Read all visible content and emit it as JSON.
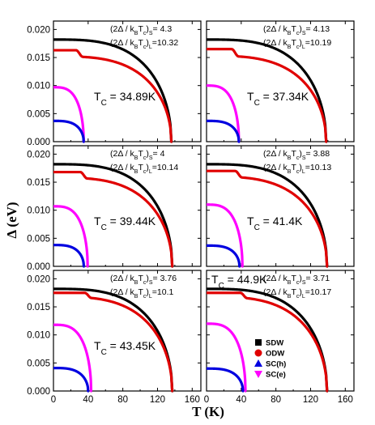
{
  "chart_data": {
    "type": "line",
    "xlabel": "T (K)",
    "ylabel": "Δ (eV)",
    "xlim": [
      0,
      170
    ],
    "ylim": [
      0,
      0.0215
    ],
    "xticks": [
      0,
      40,
      80,
      120,
      160
    ],
    "yticks": [
      0.0,
      0.005,
      0.01,
      0.015,
      0.02
    ],
    "legend": {
      "placement": "bottom-right panel",
      "entries": [
        {
          "label": "SDW",
          "marker": "square",
          "color": "#000000"
        },
        {
          "label": "ODW",
          "marker": "circle",
          "color": "#e00000"
        },
        {
          "label": "SC(h)",
          "marker": "triangle-up",
          "color": "#0000e0"
        },
        {
          "label": "SC(e)",
          "marker": "triangle-down",
          "color": "#ff00ff"
        }
      ]
    },
    "panels": [
      {
        "tc_label": "34.89K",
        "ratio_s": "4.3",
        "ratio_l": "10.32",
        "sdw": {
          "delta0": 0.0182,
          "t_end": 136
        },
        "odw": {
          "delta0": 0.0163,
          "t_end": 136,
          "dip_at": 30,
          "delta_after_dip": 0.0152
        },
        "sch": {
          "delta0": 0.0037,
          "t_end": 34.89
        },
        "sce": {
          "delta0": 0.0097,
          "t_end": 34.89
        }
      },
      {
        "tc_label": "37.34K",
        "ratio_s": "4.13",
        "ratio_l": "10.19",
        "sdw": {
          "delta0": 0.0182,
          "t_end": 138
        },
        "odw": {
          "delta0": 0.0165,
          "t_end": 138,
          "dip_at": 33,
          "delta_after_dip": 0.0153
        },
        "sch": {
          "delta0": 0.0037,
          "t_end": 37.34
        },
        "sce": {
          "delta0": 0.01,
          "t_end": 37.34
        }
      },
      {
        "tc_label": "39.44K",
        "ratio_s": "4",
        "ratio_l": "10.14",
        "sdw": {
          "delta0": 0.0182,
          "t_end": 137
        },
        "odw": {
          "delta0": 0.0168,
          "t_end": 137,
          "dip_at": 35,
          "delta_after_dip": 0.0158
        },
        "sch": {
          "delta0": 0.0038,
          "t_end": 35
        },
        "sce": {
          "delta0": 0.0107,
          "t_end": 39.44
        }
      },
      {
        "tc_label": "41.4K",
        "ratio_s": "3.88",
        "ratio_l": "10.13",
        "sdw": {
          "delta0": 0.0182,
          "t_end": 139
        },
        "odw": {
          "delta0": 0.017,
          "t_end": 139,
          "dip_at": 37,
          "delta_after_dip": 0.016
        },
        "sch": {
          "delta0": 0.0037,
          "t_end": 38
        },
        "sce": {
          "delta0": 0.011,
          "t_end": 41.4
        }
      },
      {
        "tc_label": "43.45K",
        "ratio_s": "3.76",
        "ratio_l": "10.1",
        "sdw": {
          "delta0": 0.0182,
          "t_end": 137
        },
        "odw": {
          "delta0": 0.0175,
          "t_end": 137,
          "dip_at": 40,
          "delta_after_dip": 0.0168
        },
        "sch": {
          "delta0": 0.0041,
          "t_end": 40
        },
        "sce": {
          "delta0": 0.0118,
          "t_end": 43.45
        }
      },
      {
        "tc_label": "44.9K",
        "ratio_s": "3.71",
        "ratio_l": "10.17",
        "sdw": {
          "delta0": 0.0182,
          "t_end": 139
        },
        "odw": {
          "delta0": 0.0175,
          "t_end": 139,
          "dip_at": 43,
          "delta_after_dip": 0.0168
        },
        "sch": {
          "delta0": 0.004,
          "t_end": 42
        },
        "sce": {
          "delta0": 0.012,
          "t_end": 44.9
        }
      }
    ]
  }
}
